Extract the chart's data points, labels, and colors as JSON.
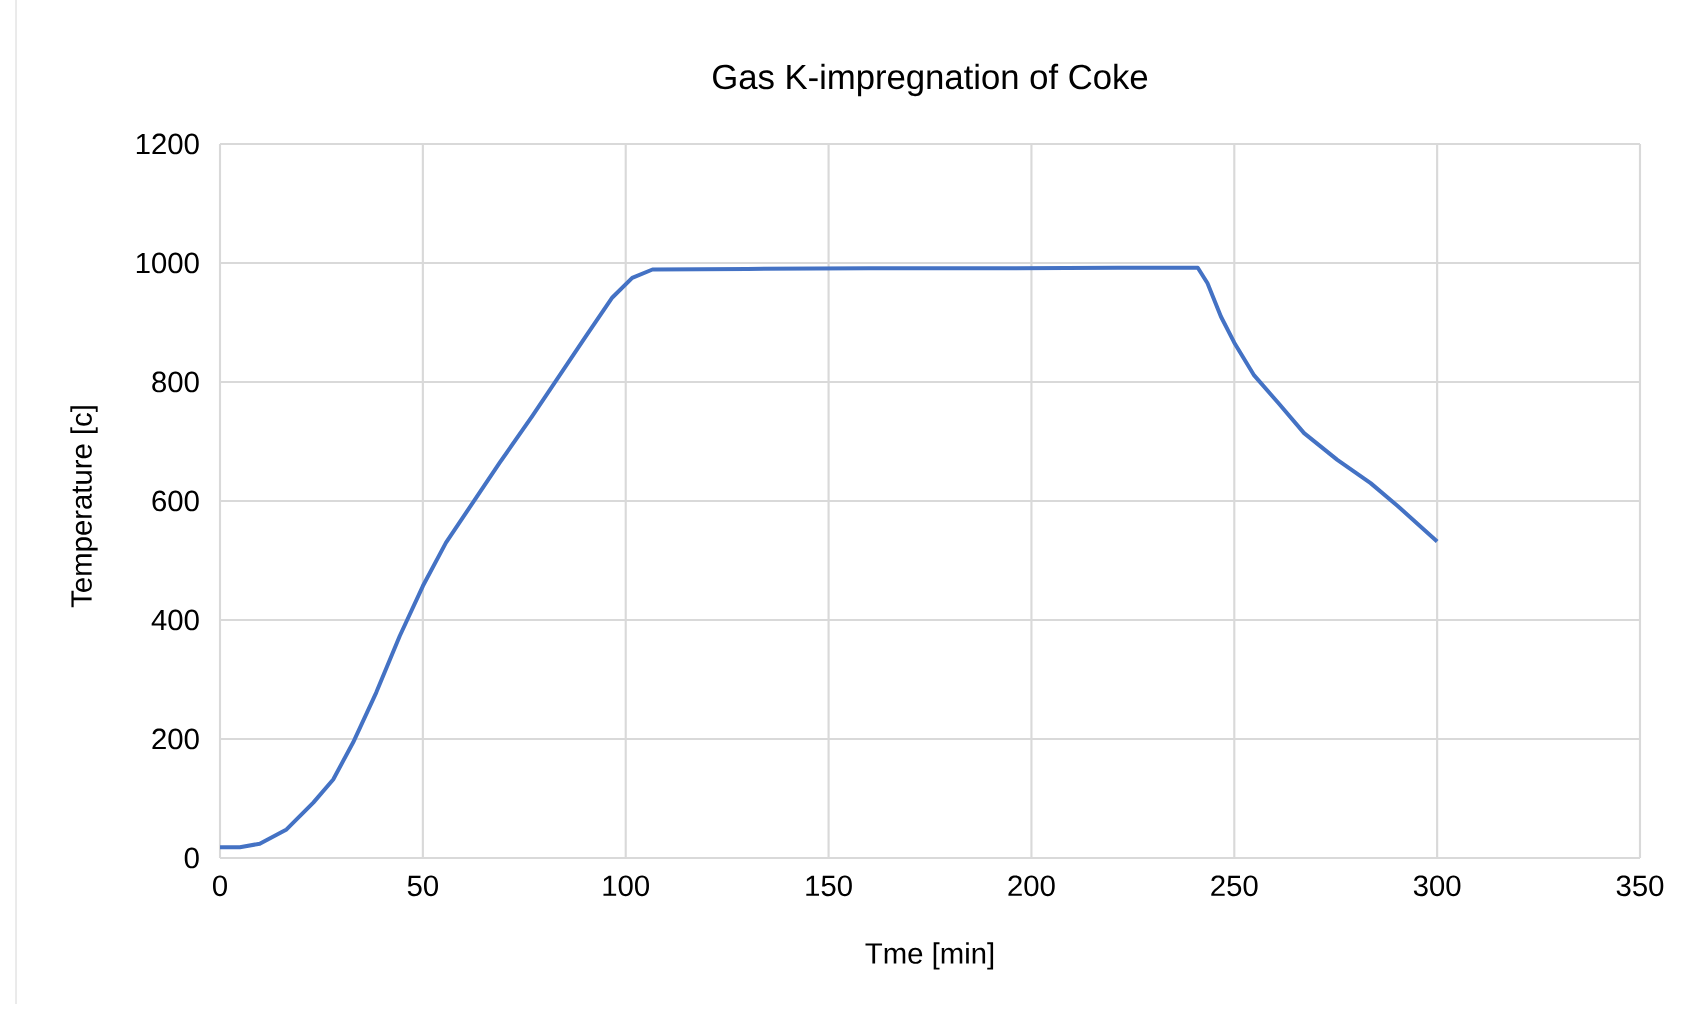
{
  "chart_data": {
    "type": "line",
    "title": "Gas K-impregnation of Coke",
    "xlabel": "Tme [min]",
    "ylabel": "Temperature [c]",
    "xlim": [
      0,
      350
    ],
    "ylim": [
      0,
      1200
    ],
    "xticks": [
      0,
      50,
      100,
      150,
      200,
      250,
      300,
      350
    ],
    "yticks": [
      0,
      200,
      400,
      600,
      800,
      1000,
      1200
    ],
    "grid": true,
    "marker": "none",
    "line_style": "solid",
    "series": [
      {
        "color": "#4472c4",
        "x": [
          0,
          4.9,
          9.8,
          16.4,
          23,
          27.9,
          32.8,
          38.5,
          44.3,
          50,
          55.7,
          62.3,
          68.9,
          77,
          83.6,
          90.2,
          96.7,
          101.6,
          106.6,
          130,
          160,
          190,
          221.3,
          241,
          243.4,
          246.7,
          250,
          254.9,
          260.7,
          267.2,
          275.4,
          283.6,
          290.2,
          300
        ],
        "values": [
          18,
          18,
          24,
          48,
          93,
          132,
          194,
          278,
          373,
          457,
          530,
          597,
          664,
          743,
          810,
          877,
          942,
          975,
          989,
          990,
          991,
          991,
          992,
          992,
          966,
          910,
          866,
          811,
          766,
          714,
          669,
          630,
          592,
          532
        ]
      }
    ]
  }
}
